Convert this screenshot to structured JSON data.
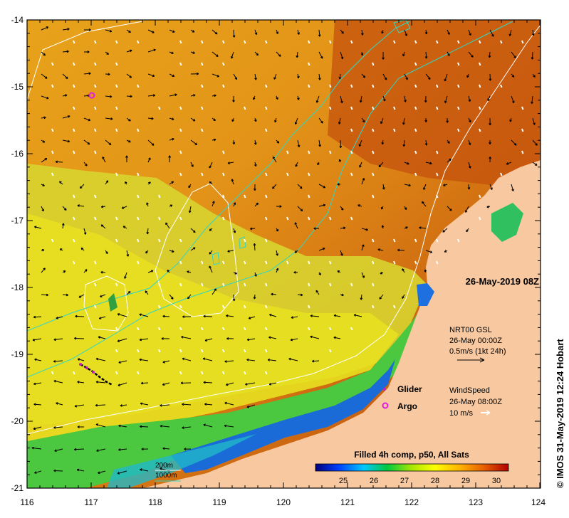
{
  "map": {
    "timestamp": "26-May-2019 08Z",
    "credit": "© IMOS 31-May-2019 12:24 Hobart",
    "lat_ticks": [
      "-14",
      "-15",
      "-16",
      "-17",
      "-18",
      "-19",
      "-20",
      "-21"
    ],
    "lon_ticks": [
      "116",
      "117",
      "118",
      "119",
      "120",
      "121",
      "122",
      "123",
      "124"
    ],
    "current_legend": {
      "line1": "NRT00 GSL",
      "line2": "26-May 00:00Z",
      "line3": "0.5m/s (1kt 24h)"
    },
    "wind_legend": {
      "line1": "WindSpeed",
      "line2": "26-May 08:00Z",
      "line3": "10 m/s"
    },
    "platforms": {
      "glider": "Glider",
      "argo": "Argo"
    },
    "isobaths": {
      "i200": "200m",
      "i1000": "1000m"
    },
    "colorbar": {
      "title": "Filled 4h comp, p50, All Sats",
      "ticks": [
        "25",
        "26",
        "27",
        "28",
        "29",
        "30"
      ]
    },
    "colors": {
      "land": "#f8c8a0",
      "isobath_200": "#ffffff",
      "isobath_1000": "#2fd6c8",
      "argo": "#e01ee0",
      "glider": "#c020c0"
    }
  }
}
